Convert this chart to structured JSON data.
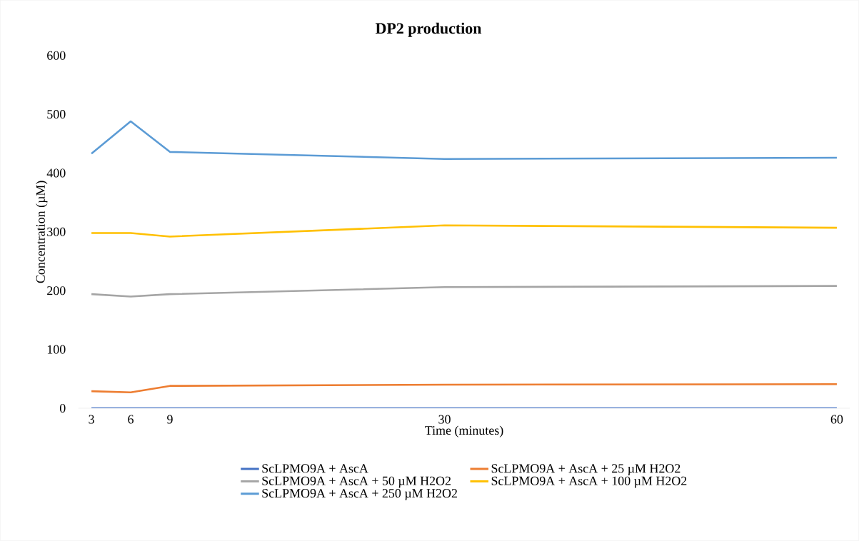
{
  "chart_data": {
    "type": "line",
    "title": "DP2 production",
    "xlabel": "Time (minutes)",
    "ylabel": "Concentration (µM)",
    "x": [
      3,
      6,
      9,
      30,
      60
    ],
    "series": [
      {
        "name": "ScLPMO9A + AscA",
        "color": "#4472c4",
        "values": [
          0,
          0,
          0,
          0,
          0
        ]
      },
      {
        "name": "ScLPMO9A + AscA + 25 µM H2O2",
        "color": "#ed7d31",
        "values": [
          29,
          27,
          38,
          40,
          41
        ]
      },
      {
        "name": "ScLPMO9A + AscA + 50 µM H2O2",
        "color": "#a5a5a5",
        "values": [
          194,
          190,
          194,
          206,
          208
        ]
      },
      {
        "name": "ScLPMO9A + AscA + 100 µM H2O2",
        "color": "#ffc000",
        "values": [
          298,
          298,
          292,
          311,
          307
        ]
      },
      {
        "name": "ScLPMO9A + AscA + 250 µM H2O2",
        "color": "#5b9bd5",
        "values": [
          433,
          488,
          436,
          424,
          426
        ]
      }
    ],
    "xlim": [
      2,
      61
    ],
    "ylim": [
      0,
      600
    ],
    "xticks": [
      3,
      6,
      9,
      30,
      60
    ],
    "yticks": [
      0,
      100,
      200,
      300,
      400,
      500,
      600
    ],
    "grid": false,
    "legend": "bottom",
    "marker": "none",
    "line_style": "solid"
  }
}
